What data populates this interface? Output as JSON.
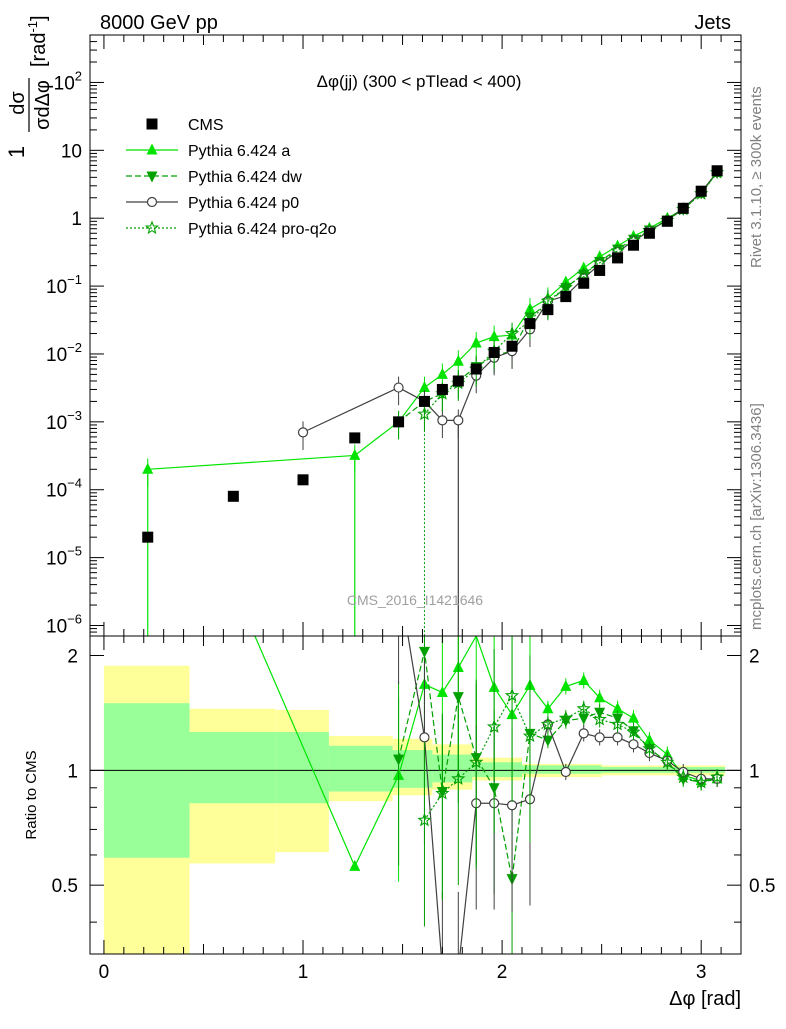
{
  "header": {
    "left": "8000 GeV pp",
    "right": "Jets"
  },
  "side_labels": {
    "rivet": "Rivet 3.1.10, ≥ 300k events",
    "mcplots": "mcplots.cern.ch [arXiv:1306.3436]"
  },
  "watermark": "CMS_2016_I1421646",
  "chart_data": {
    "type": "scatter",
    "title": "Δφ(jj) (300 < pTlead <  400)",
    "xlabel": "Δφ [rad]",
    "ylabel_num": "1",
    "ylabel_frac_num": "dσ",
    "ylabel_frac_den": "σdΔφ",
    "ylabel_unit": "[rad",
    "ylabel_unit_exp": "-1",
    "ylabel_unit_close": "]",
    "ratio_ylabel": "Ratio to CMS",
    "xlim": [
      -0.07,
      3.2
    ],
    "ylim": [
      7e-07,
      500
    ],
    "yscale": "log",
    "ratio_ylim": [
      0.33,
      2.25
    ],
    "x_ticks": [
      0,
      1,
      2,
      3
    ],
    "x_tick_labels": [
      "0",
      "1",
      "2",
      "3"
    ],
    "y_ticks": [
      {
        "mant": "10",
        "exp": "2"
      },
      {
        "mant": "10",
        "exp": ""
      },
      {
        "mant": "1",
        "exp": ""
      },
      {
        "mant": "10",
        "exp": "−1"
      },
      {
        "mant": "10",
        "exp": "−2"
      },
      {
        "mant": "10",
        "exp": "−3"
      },
      {
        "mant": "10",
        "exp": "−4"
      },
      {
        "mant": "10",
        "exp": "−5"
      },
      {
        "mant": "10",
        "exp": "−6"
      }
    ],
    "ratio_ticks": [
      2,
      1,
      0.5
    ],
    "ratio_tick_labels": [
      "2",
      "1",
      "0.5"
    ],
    "legend_placement": "top-left",
    "data": {
      "name": "CMS",
      "x": [
        0.22,
        0.65,
        1.0,
        1.26,
        1.48,
        1.61,
        1.7,
        1.78,
        1.87,
        1.96,
        2.05,
        2.14,
        2.23,
        2.32,
        2.41,
        2.49,
        2.58,
        2.66,
        2.74,
        2.83,
        2.91,
        3.0,
        3.08
      ],
      "y": [
        2e-05,
        8e-05,
        0.00014,
        0.00058,
        0.001,
        0.002,
        0.003,
        0.004,
        0.006,
        0.0105,
        0.013,
        0.028,
        0.045,
        0.07,
        0.11,
        0.17,
        0.26,
        0.4,
        0.6,
        0.9,
        1.4,
        2.5,
        5.0
      ]
    },
    "bands": [
      {
        "x0": 0.0,
        "x1": 0.43,
        "g": [
          0.59,
          1.5
        ],
        "y": [
          0.33,
          1.88
        ]
      },
      {
        "x0": 0.43,
        "x1": 0.86,
        "g": [
          0.82,
          1.26
        ],
        "y": [
          0.57,
          1.45
        ]
      },
      {
        "x0": 0.86,
        "x1": 1.13,
        "g": [
          0.82,
          1.26
        ],
        "y": [
          0.61,
          1.44
        ]
      },
      {
        "x0": 1.13,
        "x1": 1.45,
        "g": [
          0.88,
          1.16
        ],
        "y": [
          0.83,
          1.23
        ]
      },
      {
        "x0": 1.45,
        "x1": 1.65,
        "g": [
          0.9,
          1.13
        ],
        "y": [
          0.86,
          1.21
        ]
      },
      {
        "x0": 1.65,
        "x1": 1.85,
        "g": [
          0.93,
          1.1
        ],
        "y": [
          0.89,
          1.17
        ]
      },
      {
        "x0": 1.85,
        "x1": 2.1,
        "g": [
          0.96,
          1.05
        ],
        "y": [
          0.94,
          1.08
        ]
      },
      {
        "x0": 2.1,
        "x1": 2.5,
        "g": [
          0.98,
          1.03
        ],
        "y": [
          0.96,
          1.04
        ]
      },
      {
        "x0": 2.5,
        "x1": 3.12,
        "g": [
          0.985,
          1.02
        ],
        "y": [
          0.97,
          1.03
        ]
      }
    ],
    "series": [
      {
        "name": "Pythia 6.424 a",
        "color": "#00e400",
        "dash": "",
        "marker": "triangle-up",
        "x": [
          0.22,
          1.26,
          1.48,
          1.61,
          1.7,
          1.78,
          1.87,
          1.96,
          2.05,
          2.14,
          2.23,
          2.32,
          2.41,
          2.49,
          2.58,
          2.66,
          2.74,
          2.83,
          2.91,
          3.0,
          3.08
        ],
        "y": [
          0.0002,
          0.00032,
          0.001,
          0.0032,
          0.005,
          0.0078,
          0.0145,
          0.018,
          0.019,
          0.046,
          0.066,
          0.115,
          0.185,
          0.27,
          0.39,
          0.54,
          0.71,
          1.0,
          1.36,
          2.4,
          4.75
        ],
        "ratio": [
          10,
          0.56,
          0.97,
          1.68,
          1.6,
          1.86,
          2.25,
          1.65,
          1.4,
          1.67,
          1.45,
          1.66,
          1.72,
          1.55,
          1.45,
          1.37,
          1.2,
          1.1,
          0.97,
          0.94,
          0.95
        ]
      },
      {
        "name": "Pythia 6.424 dw",
        "color": "#00a000",
        "dash": "6,3",
        "marker": "triangle-down",
        "x": [
          1.48,
          1.61,
          1.7,
          1.78,
          1.87,
          1.96,
          2.05,
          2.14,
          2.23,
          2.32,
          2.41,
          2.49,
          2.58,
          2.66,
          2.74,
          2.83,
          2.91,
          3.0,
          3.08
        ],
        "y": [
          0.001,
          0.002,
          0.0026,
          0.004,
          0.0065,
          0.0095,
          0.011,
          0.035,
          0.057,
          0.095,
          0.15,
          0.23,
          0.35,
          0.49,
          0.67,
          0.94,
          1.35,
          2.35,
          4.7
        ],
        "ratio": [
          1.07,
          2.05,
          0.88,
          1.56,
          1.08,
          0.9,
          0.52,
          1.25,
          1.2,
          1.35,
          1.37,
          1.42,
          1.37,
          1.27,
          1.14,
          1.05,
          0.95,
          0.93,
          0.95
        ]
      },
      {
        "name": "Pythia 6.424 p0",
        "color": "#404040",
        "dash": "",
        "marker": "circle",
        "x": [
          1.0,
          1.48,
          1.61,
          1.7,
          1.78,
          1.87,
          1.96,
          2.05,
          2.14,
          2.23,
          2.32,
          2.41,
          2.49,
          2.58,
          2.66,
          2.74,
          2.83,
          2.91,
          3.0,
          3.08
        ],
        "y": [
          0.0007,
          0.0032,
          0.002,
          0.00105,
          0.00105,
          0.0048,
          0.0088,
          0.011,
          0.023,
          0.06,
          0.072,
          0.13,
          0.21,
          0.32,
          0.46,
          0.65,
          0.94,
          1.4,
          2.4,
          4.8
        ],
        "ratio": [
          5,
          3.2,
          1.22,
          0.3,
          0.3,
          0.82,
          0.82,
          0.81,
          0.84,
          1.32,
          0.99,
          1.25,
          1.22,
          1.22,
          1.17,
          1.11,
          1.06,
          0.99,
          0.95,
          0.95
        ]
      },
      {
        "name": "Pythia 6.424 pro-q2o",
        "color": "#00a000",
        "dash": "2,2",
        "marker": "star",
        "x": [
          1.61,
          1.7,
          1.78,
          1.87,
          1.96,
          2.05,
          2.14,
          2.23,
          2.32,
          2.41,
          2.49,
          2.58,
          2.66,
          2.74,
          2.83,
          2.91,
          3.0,
          3.08
        ],
        "y": [
          0.0013,
          0.0026,
          0.0037,
          0.006,
          0.011,
          0.02,
          0.03,
          0.06,
          0.095,
          0.15,
          0.22,
          0.33,
          0.47,
          0.66,
          0.93,
          1.35,
          2.3,
          4.7
        ],
        "ratio": [
          0.74,
          0.87,
          0.95,
          1.05,
          1.3,
          1.57,
          1.23,
          1.32,
          1.37,
          1.45,
          1.36,
          1.32,
          1.26,
          1.14,
          1.05,
          0.96,
          0.93,
          0.96
        ]
      }
    ]
  }
}
